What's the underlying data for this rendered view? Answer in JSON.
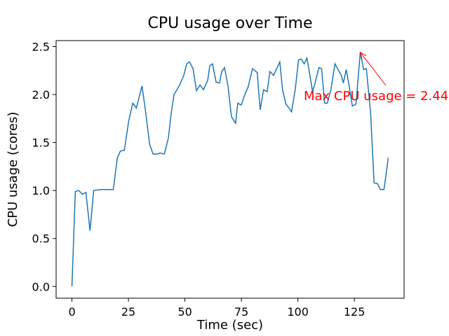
{
  "chart_data": {
    "type": "line",
    "title": "CPU usage over Time",
    "xlabel": "Time (sec)",
    "ylabel": "CPU usage (cores)",
    "x": [
      0,
      1.5,
      3.1,
      4.6,
      6.2,
      8.0,
      9.6,
      12.7,
      18.3,
      20.1,
      21.4,
      23.2,
      25.1,
      26.9,
      28.5,
      31.0,
      32.5,
      34.4,
      35.9,
      37.5,
      39.0,
      40.9,
      42.7,
      44.0,
      45.2,
      47.7,
      49.5,
      50.8,
      52.0,
      53.6,
      55.1,
      56.7,
      58.2,
      60.1,
      61.0,
      62.2,
      63.8,
      65.3,
      66.3,
      67.5,
      69.0,
      70.6,
      72.4,
      73.4,
      74.9,
      76.5,
      78.0,
      79.9,
      82.0,
      83.3,
      84.8,
      86.4,
      87.6,
      89.2,
      92.0,
      93.2,
      94.7,
      95.7,
      97.2,
      98.8,
      100.3,
      101.5,
      102.8,
      104.0,
      105.3,
      106.5,
      107.7,
      109.3,
      110.5,
      111.8,
      113.0,
      114.6,
      116.4,
      119.2,
      120.1,
      121.4,
      122.6,
      124.1,
      125.7,
      127.6,
      129.1,
      130.3,
      132.2,
      133.7,
      135.3,
      136.5,
      138.1,
      140
    ],
    "series": [
      {
        "name": "CPU usage",
        "color": "#1f77b4",
        "values": [
          0.0,
          0.99,
          1.0,
          0.96,
          0.98,
          0.58,
          1.0,
          1.01,
          1.01,
          1.34,
          1.41,
          1.42,
          1.72,
          1.91,
          1.86,
          2.09,
          1.84,
          1.48,
          1.38,
          1.38,
          1.39,
          1.38,
          1.55,
          1.82,
          2.0,
          2.1,
          2.2,
          2.32,
          2.34,
          2.27,
          2.04,
          2.1,
          2.05,
          2.15,
          2.3,
          2.32,
          2.13,
          2.12,
          2.24,
          2.28,
          2.1,
          1.77,
          1.7,
          1.91,
          1.89,
          2.0,
          2.08,
          2.27,
          2.23,
          1.84,
          2.05,
          2.03,
          2.24,
          2.2,
          2.34,
          2.05,
          1.9,
          1.87,
          1.82,
          2.05,
          2.36,
          2.37,
          2.32,
          2.38,
          2.2,
          2.03,
          2.13,
          2.28,
          2.27,
          1.91,
          1.91,
          2.05,
          2.32,
          2.2,
          2.12,
          2.26,
          2.1,
          1.88,
          1.9,
          2.44,
          2.26,
          2.27,
          1.8,
          1.08,
          1.07,
          1.01,
          1.01,
          1.34
        ]
      }
    ],
    "xlim": [
      -7,
      147
    ],
    "ylim": [
      -0.122,
      2.562
    ],
    "xticks": [
      0,
      25,
      50,
      75,
      100,
      125
    ],
    "yticks": [
      {
        "value": 0,
        "label": "0.0"
      },
      {
        "value": 0.5,
        "label": "0.5"
      },
      {
        "value": 1,
        "label": "1.0"
      },
      {
        "value": 1.5,
        "label": "1.5"
      },
      {
        "value": 2,
        "label": "2.0"
      },
      {
        "value": 2.5,
        "label": "2.5"
      }
    ],
    "annotations": [
      {
        "text": "Max CPU usage = 2.44",
        "color": "#ff0000",
        "x": 127.6,
        "y": 2.44
      }
    ]
  }
}
